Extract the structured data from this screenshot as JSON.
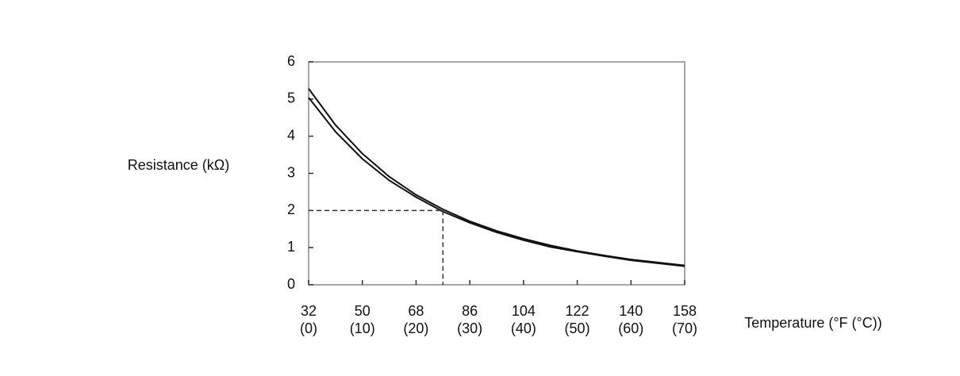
{
  "chart_data": {
    "type": "line",
    "y_label": "Resistance (kΩ)",
    "x_label": "Temperature (°F (°C))",
    "x": [
      0,
      5,
      10,
      15,
      20,
      25,
      30,
      35,
      40,
      45,
      50,
      55,
      60,
      65,
      70
    ],
    "series": [
      {
        "color": "#111111",
        "values": [
          5.28,
          4.3,
          3.53,
          2.91,
          2.42,
          2.03,
          1.71,
          1.45,
          1.24,
          1.06,
          0.91,
          0.79,
          0.68,
          0.6,
          0.52
        ]
      },
      {
        "color": "#111111",
        "values": [
          5.04,
          4.12,
          3.39,
          2.81,
          2.36,
          1.97,
          1.67,
          1.41,
          1.2,
          1.02,
          0.89,
          0.77,
          0.66,
          0.58,
          0.5
        ]
      }
    ],
    "reference": {
      "x": 25,
      "y": 2
    },
    "xlim": [
      0,
      70
    ],
    "ylim": [
      0,
      6
    ],
    "xticks": [
      {
        "value": 0,
        "label": "32\n(0)"
      },
      {
        "value": 10,
        "label": "50\n(10)"
      },
      {
        "value": 20,
        "label": "68\n(20)"
      },
      {
        "value": 30,
        "label": "86\n(30)"
      },
      {
        "value": 40,
        "label": "104\n(40)"
      },
      {
        "value": 50,
        "label": "122\n(50)"
      },
      {
        "value": 60,
        "label": "140\n(60)"
      },
      {
        "value": 70,
        "label": "158\n(70)"
      }
    ],
    "yticks": [
      0,
      1,
      2,
      3,
      4,
      5,
      6
    ],
    "grid": false
  }
}
